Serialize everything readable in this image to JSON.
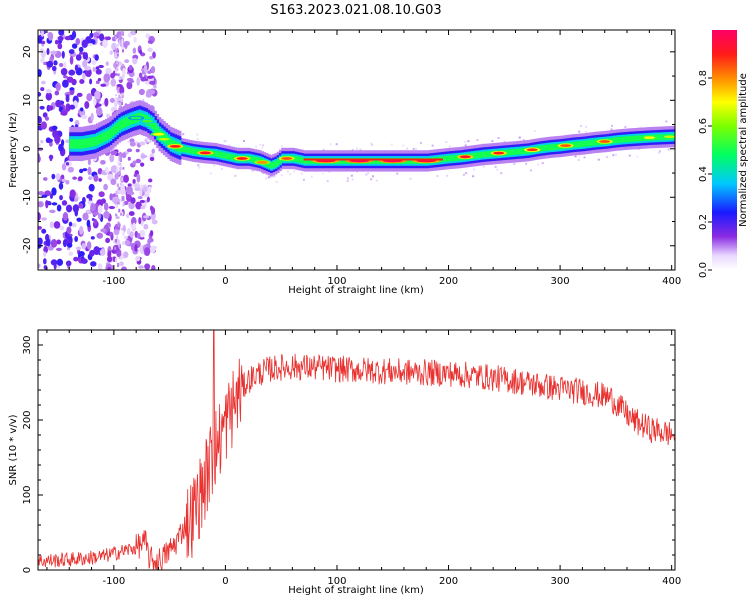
{
  "title": "S163.2023.021.08.10.G03",
  "colors": {
    "signal": "#e8312f",
    "frame": "#000000",
    "background": "#ffffff"
  },
  "chart_data": [
    {
      "type": "heatmap",
      "xlabel": "Height of straight line (km)",
      "ylabel": "Frequency (Hz)",
      "xlim": [
        -168,
        403
      ],
      "ylim": [
        -25,
        24.5
      ],
      "x_ticks": [
        -100,
        0,
        100,
        200,
        300,
        400
      ],
      "y_ticks": [
        -20,
        -10,
        0,
        10,
        20
      ],
      "colorbar": {
        "label": "Normalized spectral amplitude",
        "range": [
          0,
          1
        ],
        "ticks": [
          0.0,
          0.2,
          0.4,
          0.6,
          0.8
        ],
        "scheme": "rainbow (white-violet-blue-cyan-green-yellow-orange-red-magenta)"
      },
      "ridge": {
        "description": "frequency of peak spectral amplitude vs height",
        "x": [
          -130,
          -118,
          -105,
          -95,
          -85,
          -78,
          -72,
          -66,
          -60,
          -55,
          -50,
          -45,
          -40,
          -30,
          -20,
          -10,
          0,
          10,
          20,
          30,
          40,
          45,
          50,
          60,
          70,
          80,
          100,
          120,
          140,
          160,
          180,
          200,
          210,
          220,
          230,
          240,
          250,
          260,
          270,
          280,
          290,
          300,
          310,
          320,
          330,
          340,
          350,
          360,
          380,
          400
        ],
        "y": [
          1,
          1.5,
          3,
          5,
          6,
          6.5,
          6,
          5,
          3,
          2,
          1,
          0.5,
          0,
          -0.5,
          -0.8,
          -1,
          -1.5,
          -2,
          -2,
          -2.5,
          -3.5,
          -3,
          -2,
          -2,
          -2.5,
          -2.5,
          -2.5,
          -2.5,
          -2.5,
          -2.5,
          -2.5,
          -2,
          -1.8,
          -1.5,
          -1.2,
          -1,
          -0.8,
          -0.6,
          -0.4,
          0,
          0.3,
          0.5,
          0.8,
          1,
          1.3,
          1.5,
          1.8,
          2,
          2.3,
          2.5
        ]
      }
    },
    {
      "type": "line",
      "xlabel": "Height of straight line (km)",
      "ylabel": "SNR (10 * v/v)",
      "xlim": [
        -168,
        403
      ],
      "ylim": [
        0,
        320
      ],
      "x_ticks": [
        -100,
        0,
        100,
        200,
        300,
        400
      ],
      "y_ticks": [
        0,
        100,
        200,
        300
      ],
      "series": [
        {
          "envelope_x": [
            -168,
            -150,
            -130,
            -110,
            -95,
            -80,
            -72,
            -68,
            -62,
            -55,
            -45,
            -38,
            -30,
            -25,
            -20,
            -15,
            -10,
            -5,
            0,
            5,
            10,
            15,
            20,
            25,
            30,
            35,
            40,
            50,
            60,
            80,
            100,
            130,
            160,
            200,
            230,
            260,
            290,
            320,
            345,
            355,
            365,
            380,
            403
          ],
          "envelope_y": [
            12,
            13,
            15,
            18,
            24,
            30,
            38,
            15,
            10,
            18,
            35,
            55,
            70,
            90,
            110,
            135,
            160,
            175,
            195,
            212,
            228,
            242,
            252,
            258,
            262,
            265,
            268,
            270,
            271,
            270,
            268,
            266,
            264,
            262,
            258,
            252,
            244,
            238,
            230,
            215,
            200,
            188,
            180
          ],
          "noise_amplitude": 18
        }
      ]
    }
  ]
}
